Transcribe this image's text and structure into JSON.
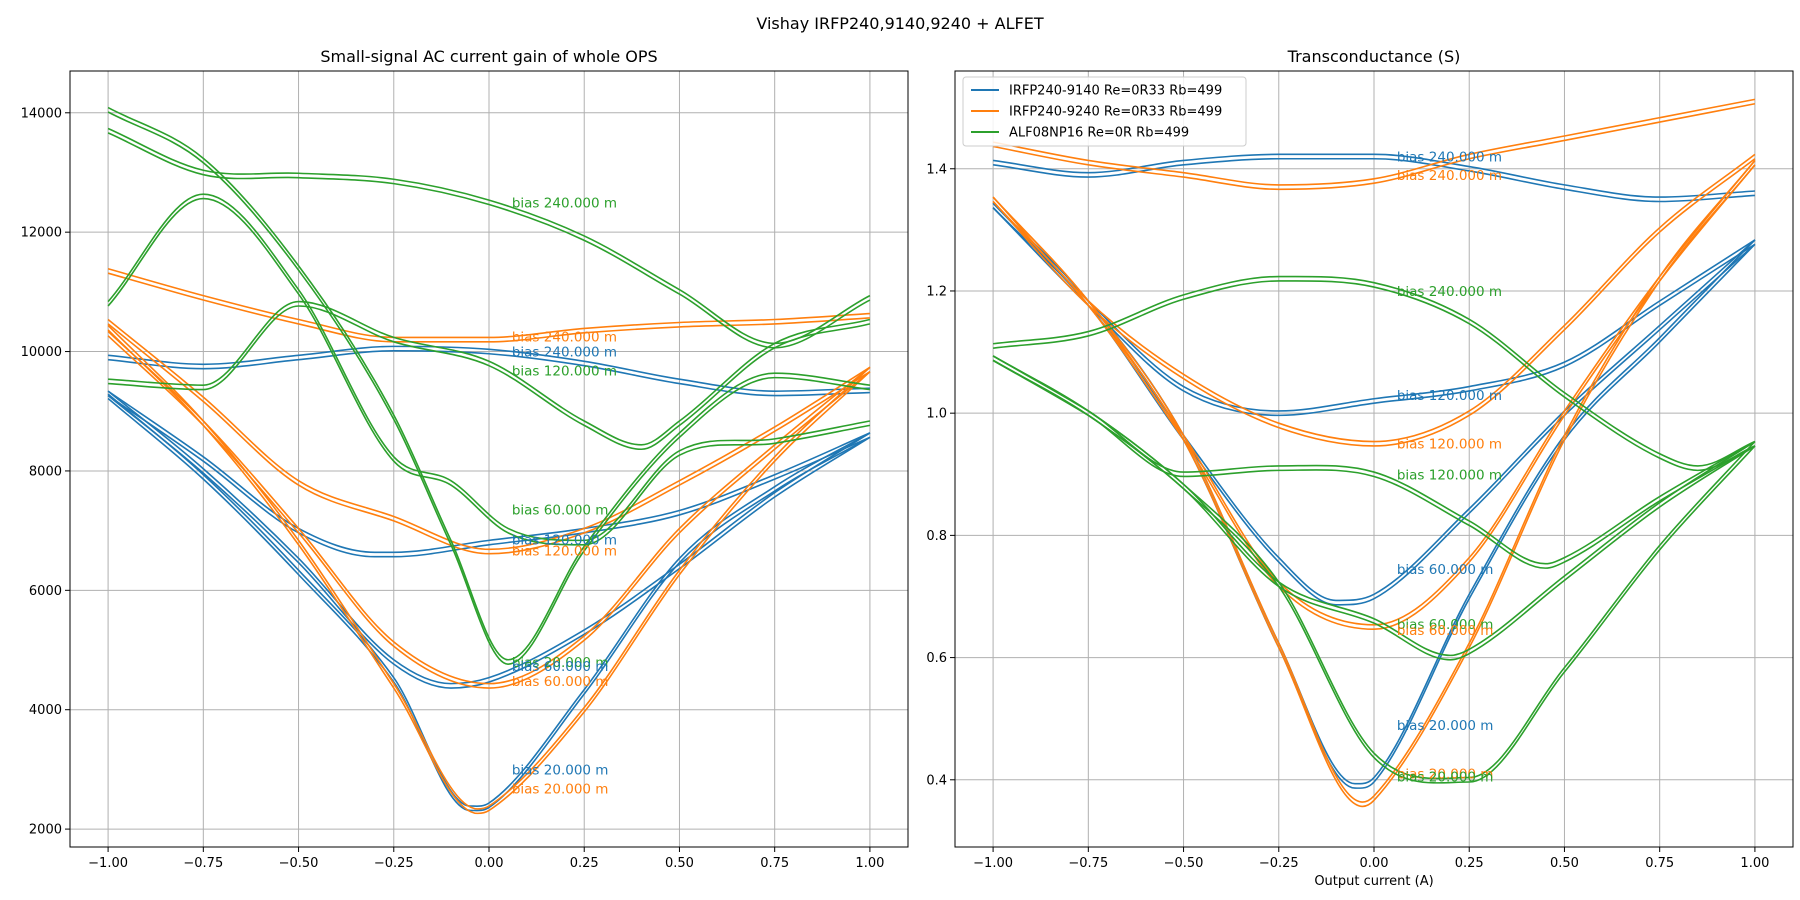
{
  "figure": {
    "suptitle": "Vishay IRFP240,9140,9240 + ALFET"
  },
  "colors": {
    "s1": "#1f77b4",
    "s2": "#ff7f0e",
    "s3": "#2ca02c",
    "grid": "#b0b0b0"
  },
  "chart_data": [
    {
      "type": "line",
      "title": "Small-signal AC current gain of whole OPS",
      "xlabel": "",
      "ylabel": "",
      "xlim": [
        -1.1,
        1.1
      ],
      "ylim": [
        1700,
        14700
      ],
      "xticks": [
        -1.0,
        -0.75,
        -0.5,
        -0.25,
        0.0,
        0.25,
        0.5,
        0.75,
        1.0
      ],
      "xtick_labels": [
        "−1.00",
        "−0.75",
        "−0.50",
        "−0.25",
        "0.00",
        "0.25",
        "0.50",
        "0.75",
        "1.00"
      ],
      "yticks": [
        2000,
        4000,
        6000,
        8000,
        10000,
        12000,
        14000
      ],
      "ytick_labels": [
        "2000",
        "4000",
        "6000",
        "8000",
        "10000",
        "12000",
        "14000"
      ],
      "grid": true,
      "series": [
        {
          "color_key": "s1",
          "x": [
            -1.0,
            -0.75,
            -0.5,
            -0.25,
            -0.05,
            0.0,
            0.25,
            0.5,
            0.75,
            1.0
          ],
          "y": [
            9250,
            7900,
            6300,
            4500,
            2350,
            2400,
            4300,
            6500,
            7700,
            8600
          ]
        },
        {
          "color_key": "s1",
          "x": [
            -1.0,
            -0.75,
            -0.5,
            -0.25,
            -0.1,
            0.0,
            0.25,
            0.5,
            0.75,
            1.0
          ],
          "y": [
            9300,
            8000,
            6500,
            4800,
            4400,
            4500,
            5300,
            6400,
            7600,
            8600
          ]
        },
        {
          "color_key": "s1",
          "x": [
            -1.0,
            -0.75,
            -0.5,
            -0.3,
            -0.25,
            0.0,
            0.25,
            0.5,
            0.75,
            1.0
          ],
          "y": [
            9300,
            8200,
            7000,
            6600,
            6600,
            6800,
            7000,
            7300,
            7900,
            8600
          ]
        },
        {
          "color_key": "s1",
          "x": [
            -1.0,
            -0.75,
            -0.5,
            -0.25,
            0.0,
            0.25,
            0.5,
            0.75,
            1.0
          ],
          "y": [
            9900,
            9750,
            9900,
            10050,
            10000,
            9800,
            9500,
            9300,
            9350
          ]
        },
        {
          "color_key": "s2",
          "x": [
            -1.0,
            -0.75,
            -0.5,
            -0.25,
            -0.03,
            0.0,
            0.25,
            0.5,
            0.75,
            1.0
          ],
          "y": [
            10400,
            8800,
            6800,
            4400,
            2300,
            2350,
            4000,
            6300,
            8200,
            9700
          ]
        },
        {
          "color_key": "s2",
          "x": [
            -1.0,
            -0.75,
            -0.5,
            -0.25,
            0.0,
            0.25,
            0.5,
            0.75,
            1.0
          ],
          "y": [
            10300,
            8800,
            7000,
            5100,
            4400,
            5200,
            7000,
            8400,
            9700
          ]
        },
        {
          "color_key": "s2",
          "x": [
            -1.0,
            -0.75,
            -0.5,
            -0.25,
            0.0,
            0.25,
            0.5,
            0.75,
            1.0
          ],
          "y": [
            10500,
            9200,
            7800,
            7200,
            6650,
            7000,
            7800,
            8700,
            9700
          ]
        },
        {
          "color_key": "s2",
          "x": [
            -1.0,
            -0.75,
            -0.5,
            -0.25,
            0.0,
            0.25,
            0.5,
            0.75,
            1.0
          ],
          "y": [
            11350,
            10900,
            10500,
            10200,
            10200,
            10350,
            10450,
            10500,
            10600
          ]
        },
        {
          "color_key": "s3",
          "x": [
            -1.0,
            -0.75,
            -0.5,
            -0.25,
            -0.1,
            0.05,
            0.25,
            0.5,
            0.75,
            1.0
          ],
          "y": [
            14050,
            13200,
            11400,
            8900,
            6800,
            4800,
            6700,
            8600,
            9600,
            9400
          ]
        },
        {
          "color_key": "s3",
          "x": [
            -1.0,
            -0.75,
            -0.5,
            -0.25,
            -0.1,
            0.05,
            0.25,
            0.5,
            0.75,
            1.0
          ],
          "y": [
            10800,
            12600,
            11000,
            8200,
            7800,
            7000,
            6800,
            8300,
            8500,
            8800
          ]
        },
        {
          "color_key": "s3",
          "x": [
            -1.0,
            -0.75,
            -0.5,
            -0.25,
            0.0,
            0.25,
            0.4,
            0.5,
            0.75,
            1.0
          ],
          "y": [
            9500,
            9400,
            10800,
            10200,
            9800,
            8800,
            8400,
            8800,
            10100,
            10500
          ]
        },
        {
          "color_key": "s3",
          "x": [
            -1.0,
            -0.75,
            -0.5,
            -0.25,
            0.0,
            0.25,
            0.5,
            0.75,
            1.0
          ],
          "y": [
            13700,
            13000,
            12950,
            12850,
            12500,
            11900,
            11000,
            10100,
            10900
          ]
        }
      ],
      "annotations": [
        {
          "text": "bias 240.000 m",
          "color_key": "s3",
          "x": 0.06,
          "y": 12500
        },
        {
          "text": "bias 240.000 m",
          "color_key": "s2",
          "x": 0.06,
          "y": 10250
        },
        {
          "text": "bias 240.000 m",
          "color_key": "s1",
          "x": 0.06,
          "y": 10000
        },
        {
          "text": "bias 120.000 m",
          "color_key": "s3",
          "x": 0.06,
          "y": 9680
        },
        {
          "text": "bias 60.000 m",
          "color_key": "s3",
          "x": 0.06,
          "y": 7350
        },
        {
          "text": "bias 120.000 m",
          "color_key": "s1",
          "x": 0.06,
          "y": 6850
        },
        {
          "text": "bias 120.000 m",
          "color_key": "s2",
          "x": 0.06,
          "y": 6670
        },
        {
          "text": "bias 20.000 m",
          "color_key": "s3",
          "x": 0.06,
          "y": 4800
        },
        {
          "text": "bias 60.000 m",
          "color_key": "s1",
          "x": 0.06,
          "y": 4730
        },
        {
          "text": "bias 60.000 m",
          "color_key": "s2",
          "x": 0.06,
          "y": 4480
        },
        {
          "text": "bias 20.000 m",
          "color_key": "s1",
          "x": 0.06,
          "y": 3000
        },
        {
          "text": "bias 20.000 m",
          "color_key": "s2",
          "x": 0.06,
          "y": 2680
        }
      ]
    },
    {
      "type": "line",
      "title": "Transconductance (S)",
      "xlabel": "Output current (A)",
      "ylabel": "",
      "xlim": [
        -1.1,
        1.1
      ],
      "ylim": [
        0.29,
        1.56
      ],
      "xticks": [
        -1.0,
        -0.75,
        -0.5,
        -0.25,
        0.0,
        0.25,
        0.5,
        0.75,
        1.0
      ],
      "xtick_labels": [
        "−1.00",
        "−0.75",
        "−0.50",
        "−0.25",
        "0.00",
        "0.25",
        "0.50",
        "0.75",
        "1.00"
      ],
      "yticks": [
        0.4,
        0.6,
        0.8,
        1.0,
        1.2,
        1.4
      ],
      "ytick_labels": [
        "0.4",
        "0.6",
        "0.8",
        "1.0",
        "1.2",
        "1.4"
      ],
      "grid": true,
      "legend": {
        "position": "top-left",
        "entries": [
          {
            "label": "IRFP240-9140 Re=0R33 Rb=499",
            "color_key": "s1"
          },
          {
            "label": "IRFP240-9240 Re=0R33 Rb=499",
            "color_key": "s2"
          },
          {
            "label": "ALF08NP16 Re=0R Rb=499",
            "color_key": "s3"
          }
        ]
      },
      "series": [
        {
          "color_key": "s1",
          "x": [
            -1.0,
            -0.75,
            -0.5,
            -0.25,
            -0.05,
            0.0,
            0.25,
            0.5,
            0.75,
            1.0
          ],
          "y": [
            1.34,
            1.18,
            0.96,
            0.62,
            0.39,
            0.4,
            0.7,
            0.96,
            1.12,
            1.28
          ]
        },
        {
          "color_key": "s1",
          "x": [
            -1.0,
            -0.75,
            -0.5,
            -0.25,
            -0.1,
            0.0,
            0.25,
            0.5,
            0.75,
            1.0
          ],
          "y": [
            1.34,
            1.18,
            0.96,
            0.76,
            0.69,
            0.7,
            0.84,
            1.0,
            1.14,
            1.28
          ]
        },
        {
          "color_key": "s1",
          "x": [
            -1.0,
            -0.75,
            -0.5,
            -0.25,
            0.0,
            0.25,
            0.5,
            0.75,
            1.0
          ],
          "y": [
            1.34,
            1.18,
            1.04,
            1.0,
            1.02,
            1.04,
            1.08,
            1.18,
            1.28
          ]
        },
        {
          "color_key": "s1",
          "x": [
            -1.0,
            -0.75,
            -0.5,
            -0.25,
            0.0,
            0.25,
            0.5,
            0.75,
            1.0
          ],
          "y": [
            1.41,
            1.39,
            1.41,
            1.42,
            1.42,
            1.4,
            1.37,
            1.35,
            1.36
          ]
        },
        {
          "color_key": "s2",
          "x": [
            -1.0,
            -0.75,
            -0.5,
            -0.25,
            -0.03,
            0.0,
            0.25,
            0.5,
            0.75,
            1.0
          ],
          "y": [
            1.35,
            1.18,
            0.96,
            0.62,
            0.36,
            0.37,
            0.62,
            0.96,
            1.22,
            1.41
          ]
        },
        {
          "color_key": "s2",
          "x": [
            -1.0,
            -0.75,
            -0.5,
            -0.25,
            0.0,
            0.25,
            0.5,
            0.75,
            1.0
          ],
          "y": [
            1.35,
            1.18,
            0.96,
            0.72,
            0.65,
            0.76,
            1.0,
            1.22,
            1.41
          ]
        },
        {
          "color_key": "s2",
          "x": [
            -1.0,
            -0.75,
            -0.5,
            -0.25,
            0.0,
            0.25,
            0.5,
            0.75,
            1.0
          ],
          "y": [
            1.35,
            1.18,
            1.06,
            0.98,
            0.95,
            1.0,
            1.14,
            1.3,
            1.42
          ]
        },
        {
          "color_key": "s2",
          "x": [
            -1.0,
            -0.75,
            -0.5,
            -0.25,
            0.0,
            0.25,
            0.5,
            0.75,
            1.0
          ],
          "y": [
            1.44,
            1.41,
            1.39,
            1.37,
            1.38,
            1.42,
            1.45,
            1.48,
            1.51
          ]
        },
        {
          "color_key": "s3",
          "x": [
            -1.0,
            -0.75,
            -0.5,
            -0.25,
            0.0,
            0.25,
            0.5,
            0.75,
            1.0
          ],
          "y": [
            1.09,
            1.0,
            0.88,
            0.72,
            0.44,
            0.4,
            0.58,
            0.78,
            0.95
          ]
        },
        {
          "color_key": "s3",
          "x": [
            -1.0,
            -0.75,
            -0.5,
            -0.25,
            0.0,
            0.2,
            0.25,
            0.5,
            0.75,
            1.0
          ],
          "y": [
            1.09,
            1.0,
            0.88,
            0.72,
            0.66,
            0.6,
            0.61,
            0.73,
            0.85,
            0.95
          ]
        },
        {
          "color_key": "s3",
          "x": [
            -1.0,
            -0.75,
            -0.5,
            -0.25,
            0.0,
            0.25,
            0.45,
            0.5,
            0.75,
            1.0
          ],
          "y": [
            1.09,
            1.0,
            0.9,
            0.91,
            0.9,
            0.82,
            0.75,
            0.76,
            0.86,
            0.95
          ]
        },
        {
          "color_key": "s3",
          "x": [
            -1.0,
            -0.75,
            -0.5,
            -0.25,
            0.0,
            0.25,
            0.5,
            0.75,
            0.85,
            1.0
          ],
          "y": [
            1.11,
            1.13,
            1.19,
            1.22,
            1.21,
            1.15,
            1.03,
            0.93,
            0.91,
            0.95
          ]
        }
      ],
      "annotations": [
        {
          "text": "bias 240.000 m",
          "color_key": "s1",
          "x": 0.06,
          "y": 1.42
        },
        {
          "text": "bias 240.000 m",
          "color_key": "s2",
          "x": 0.06,
          "y": 1.39
        },
        {
          "text": "bias 240.000 m",
          "color_key": "s3",
          "x": 0.06,
          "y": 1.2
        },
        {
          "text": "bias 120.000 m",
          "color_key": "s1",
          "x": 0.06,
          "y": 1.03
        },
        {
          "text": "bias 120.000 m",
          "color_key": "s2",
          "x": 0.06,
          "y": 0.95
        },
        {
          "text": "bias 120.000 m",
          "color_key": "s3",
          "x": 0.06,
          "y": 0.9
        },
        {
          "text": "bias 60.000 m",
          "color_key": "s1",
          "x": 0.06,
          "y": 0.745
        },
        {
          "text": "bias 60.000 m",
          "color_key": "s3",
          "x": 0.06,
          "y": 0.655
        },
        {
          "text": "bias 60.000 m",
          "color_key": "s2",
          "x": 0.06,
          "y": 0.645
        },
        {
          "text": "bias 20.000 m",
          "color_key": "s1",
          "x": 0.06,
          "y": 0.49
        },
        {
          "text": "bias 20.000 m",
          "color_key": "s2",
          "x": 0.06,
          "y": 0.41
        },
        {
          "text": "bias 20.000 m",
          "color_key": "s3",
          "x": 0.06,
          "y": 0.405
        }
      ]
    }
  ]
}
